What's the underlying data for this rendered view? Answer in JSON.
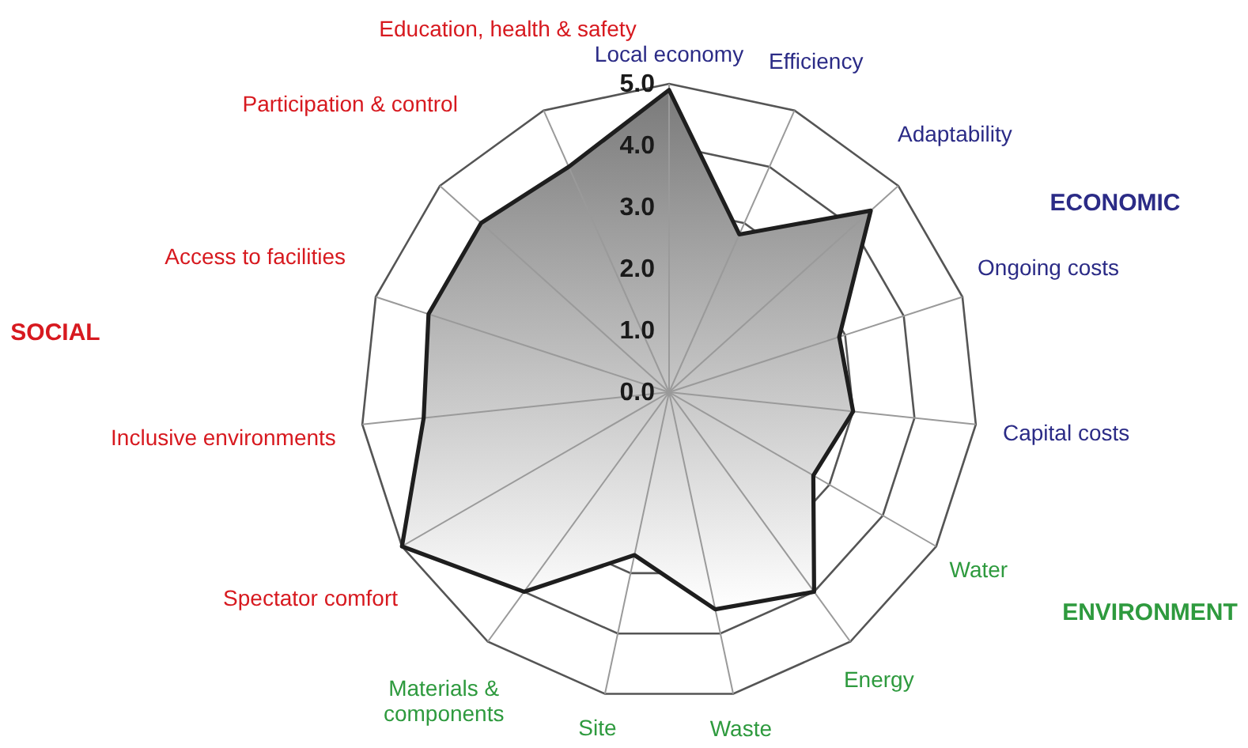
{
  "chart_data": {
    "type": "radar",
    "categories": [
      "Local economy",
      "Efficiency",
      "Adaptability",
      "Ongoing costs",
      "Capital costs",
      "Water",
      "Energy",
      "Waste",
      "Site",
      "Materials &\ncomponents",
      "Spectator comfort",
      "Inclusive environments",
      "Access to facilities",
      "Participation & control",
      "Education, health & safety"
    ],
    "colors": [
      "#2b2b86",
      "#2b2b86",
      "#2b2b86",
      "#2b2b86",
      "#2b2b86",
      "#2e9a3e",
      "#2e9a3e",
      "#2e9a3e",
      "#2e9a3e",
      "#2e9a3e",
      "#d7191f",
      "#d7191f",
      "#d7191f",
      "#d7191f",
      "#d7191f"
    ],
    "series": [
      {
        "color": "#7a7a7a",
        "values": [
          4.9,
          2.8,
          4.4,
          2.9,
          3.0,
          2.7,
          4.0,
          3.6,
          2.7,
          4.0,
          5.0,
          4.0,
          4.1,
          4.1,
          4.0
        ]
      }
    ],
    "ylim": [
      0,
      5
    ],
    "yticks": [
      {
        "value": 0,
        "label": "0.0"
      },
      {
        "value": 1,
        "label": "1.0"
      },
      {
        "value": 2,
        "label": "2.0"
      },
      {
        "value": 3,
        "label": "3.0"
      },
      {
        "value": 4,
        "label": "4.0"
      },
      {
        "value": 5,
        "label": "5.0"
      }
    ],
    "grid": true,
    "annotations": [
      "ECONOMIC",
      "SOCIAL",
      "ENVIRONMENT"
    ]
  }
}
